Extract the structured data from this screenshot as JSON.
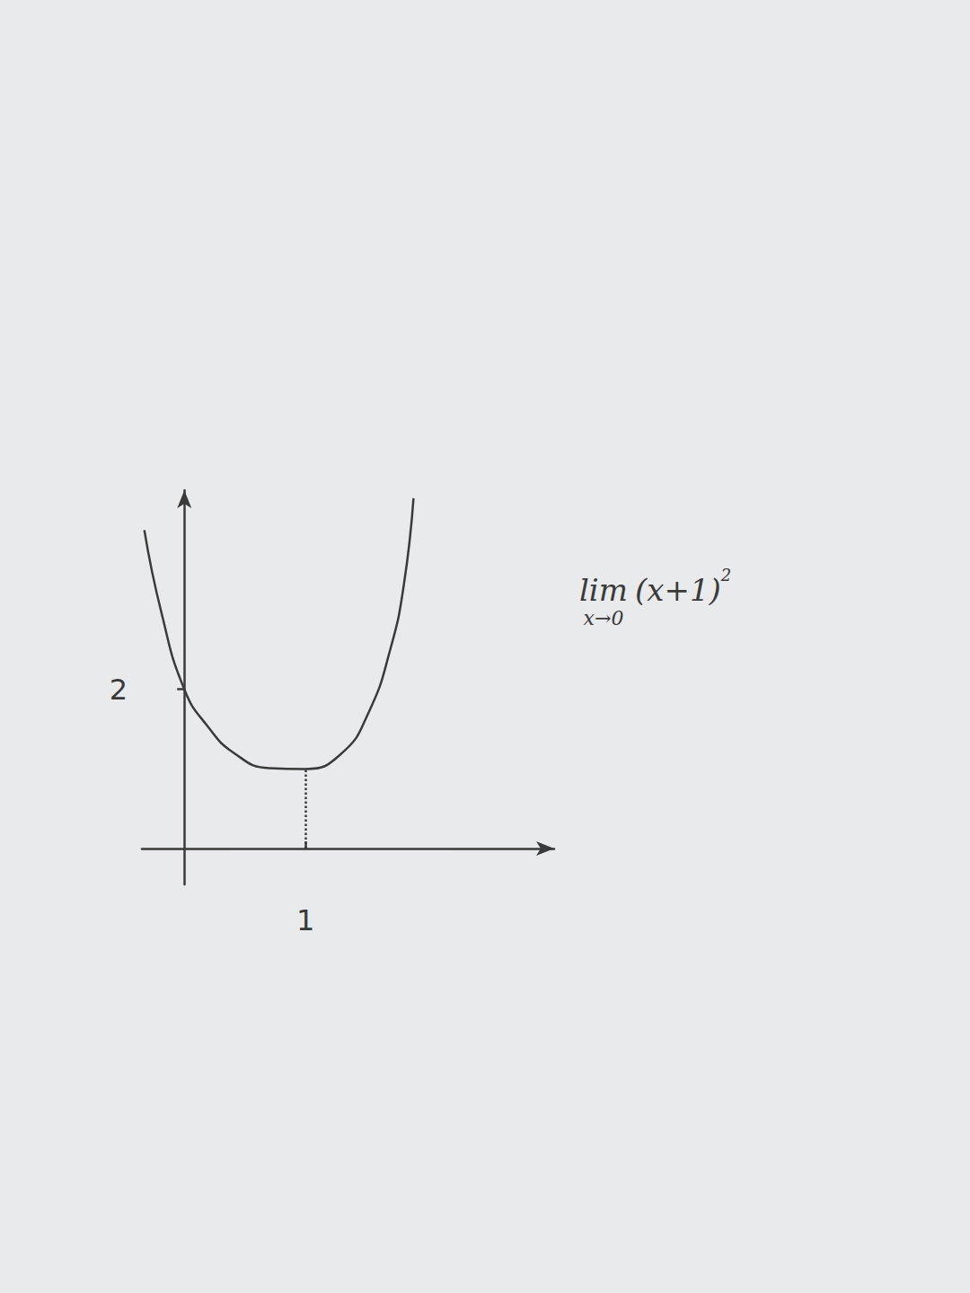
{
  "chart_data": {
    "type": "line",
    "x": [
      -0.33,
      -0.19,
      0,
      0.19,
      0.41,
      0.7,
      1.0,
      1.3,
      1.52,
      1.7,
      1.81,
      1.89
    ],
    "values": [
      4.0,
      2.97,
      2.0,
      1.54,
      1.2,
      1.01,
      1.0,
      1.2,
      1.71,
      2.51,
      3.31,
      4.4
    ],
    "xlim": [
      -0.35,
      3.05
    ],
    "ylim": [
      -0.45,
      4.5
    ],
    "xticks": [
      1
    ],
    "yticks": [
      2
    ],
    "grid": false,
    "color": "#3a3a3a",
    "line_style": "solid",
    "marker": "none",
    "annotation": {
      "operator": "lim",
      "limit": "x→0",
      "expression": "(x+1)",
      "exponent": "2"
    }
  }
}
